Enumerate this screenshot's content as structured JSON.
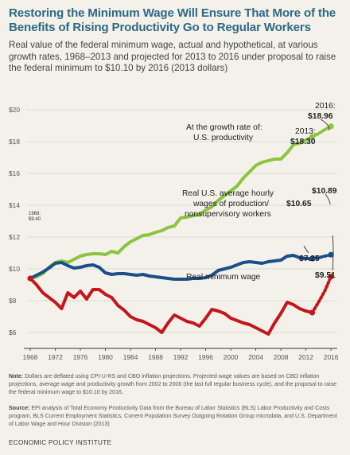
{
  "title": "Restoring the Minimum Wage Will Ensure That More of the Benefits of Rising Productivity Go to Regular Workers",
  "subtitle": "Real value of the federal minimum wage, actual and hypothetical, at various growth rates, 1968–2013 and projected for 2013 to 2016 under proposal to raise the federal minimum to $10.10 by 2016 (2013 dollars)",
  "note_label": "Note:",
  "note": "Dollars are deflated using CPI-U-RS and CBO inflation projections. Projected wage values are based on CBO inflation projections, average wage and productivity growth from 2002 to 2006 (the last full regular business cycle), and the proposal to raise the federal minimum wage to $10.10 by 2016.",
  "source_label": "Source:",
  "source": "EPI analysis of Total Economy Productivity Data from the Bureau of Labor Statistics (BLS) Labor Productivity and Costs program, BLS Current Employment Statistics, Current Population Survey Outgoing Rotation Group microdata, and U.S. Department of Labor Wage and Hour Division (2013)",
  "footer": "ECONOMIC POLICY INSTITUTE",
  "colors": {
    "productivity": "#8bc53f",
    "average_wage": "#1b4f8a",
    "minimum_wage": "#c4161c",
    "grid": "#d7d5cf",
    "title": "#2f6a84"
  },
  "chart_data": {
    "type": "line",
    "xlim": [
      1968,
      2017
    ],
    "ylim": [
      5,
      21
    ],
    "y_ticks": [
      "$20",
      "$18",
      "$16",
      "$14",
      "$12",
      "$10",
      "$8",
      "$6"
    ],
    "x_ticks": [
      "1968",
      "1972",
      "1976",
      "1980",
      "1984",
      "1988",
      "1992",
      "1996",
      "2000",
      "2004",
      "2008",
      "2012",
      "2016"
    ],
    "grid": true,
    "series": [
      {
        "key": "productivity",
        "label_lines": [
          "At the growth rate of:",
          "U.S. productivity"
        ],
        "actual": [
          [
            1968,
            9.4
          ],
          [
            1969,
            9.5
          ],
          [
            1970,
            9.7
          ],
          [
            1971,
            10.1
          ],
          [
            1972,
            10.4
          ],
          [
            1973,
            10.5
          ],
          [
            1974,
            10.4
          ],
          [
            1975,
            10.6
          ],
          [
            1976,
            10.8
          ],
          [
            1977,
            10.9
          ],
          [
            1978,
            10.95
          ],
          [
            1979,
            10.95
          ],
          [
            1980,
            10.9
          ],
          [
            1981,
            11.1
          ],
          [
            1982,
            11.0
          ],
          [
            1983,
            11.4
          ],
          [
            1984,
            11.7
          ],
          [
            1985,
            11.9
          ],
          [
            1986,
            12.1
          ],
          [
            1987,
            12.15
          ],
          [
            1988,
            12.3
          ],
          [
            1989,
            12.4
          ],
          [
            1990,
            12.6
          ],
          [
            1991,
            12.7
          ],
          [
            1992,
            13.2
          ],
          [
            1993,
            13.25
          ],
          [
            1994,
            13.35
          ],
          [
            1995,
            13.4
          ],
          [
            1996,
            13.7
          ],
          [
            1997,
            13.9
          ],
          [
            1998,
            14.3
          ],
          [
            1999,
            14.6
          ],
          [
            2000,
            14.9
          ],
          [
            2001,
            15.2
          ],
          [
            2002,
            15.7
          ],
          [
            2003,
            16.1
          ],
          [
            2004,
            16.5
          ],
          [
            2005,
            16.7
          ],
          [
            2006,
            16.8
          ],
          [
            2007,
            16.9
          ],
          [
            2008,
            16.9
          ],
          [
            2009,
            17.3
          ],
          [
            2010,
            17.8
          ],
          [
            2011,
            17.9
          ],
          [
            2012,
            18.1
          ],
          [
            2013,
            18.3
          ]
        ],
        "projected": [
          [
            2013,
            18.3
          ],
          [
            2014,
            18.5
          ],
          [
            2015,
            18.75
          ],
          [
            2016,
            18.96
          ]
        ],
        "callouts": [
          {
            "year_label": "2013:",
            "value": "$18.30"
          },
          {
            "year_label": "2016:",
            "value": "$18.96"
          }
        ]
      },
      {
        "key": "average_wage",
        "label_lines": [
          "Real U.S. average hourly",
          "wages of production/",
          "nonsupervisory workers"
        ],
        "actual": [
          [
            1968,
            9.4
          ],
          [
            1969,
            9.6
          ],
          [
            1970,
            9.8
          ],
          [
            1971,
            10.05
          ],
          [
            1972,
            10.35
          ],
          [
            1973,
            10.4
          ],
          [
            1974,
            10.2
          ],
          [
            1975,
            10.05
          ],
          [
            1976,
            10.1
          ],
          [
            1977,
            10.2
          ],
          [
            1978,
            10.25
          ],
          [
            1979,
            10.1
          ],
          [
            1980,
            9.75
          ],
          [
            1981,
            9.65
          ],
          [
            1982,
            9.7
          ],
          [
            1983,
            9.7
          ],
          [
            1984,
            9.65
          ],
          [
            1985,
            9.6
          ],
          [
            1986,
            9.65
          ],
          [
            1987,
            9.55
          ],
          [
            1988,
            9.5
          ],
          [
            1989,
            9.45
          ],
          [
            1990,
            9.4
          ],
          [
            1991,
            9.35
          ],
          [
            1992,
            9.35
          ],
          [
            1993,
            9.35
          ],
          [
            1994,
            9.4
          ],
          [
            1995,
            9.4
          ],
          [
            1996,
            9.45
          ],
          [
            1997,
            9.6
          ],
          [
            1998,
            9.9
          ],
          [
            1999,
            10.0
          ],
          [
            2000,
            10.1
          ],
          [
            2001,
            10.25
          ],
          [
            2002,
            10.4
          ],
          [
            2003,
            10.45
          ],
          [
            2004,
            10.4
          ],
          [
            2005,
            10.35
          ],
          [
            2006,
            10.45
          ],
          [
            2007,
            10.5
          ],
          [
            2008,
            10.55
          ],
          [
            2009,
            10.8
          ],
          [
            2010,
            10.85
          ],
          [
            2011,
            10.7
          ],
          [
            2012,
            10.65
          ],
          [
            2013,
            10.65
          ]
        ],
        "projected": [
          [
            2013,
            10.65
          ],
          [
            2014,
            10.7
          ],
          [
            2015,
            10.8
          ],
          [
            2016,
            10.89
          ]
        ],
        "callouts": [
          {
            "value": "$10.65"
          },
          {
            "value": "$10.89"
          }
        ]
      },
      {
        "key": "minimum_wage",
        "label_lines": [
          "Real minimum wage"
        ],
        "actual": [
          [
            1968,
            9.4
          ],
          [
            1969,
            9.0
          ],
          [
            1970,
            8.5
          ],
          [
            1971,
            8.2
          ],
          [
            1972,
            7.9
          ],
          [
            1973,
            7.5
          ],
          [
            1974,
            8.5
          ],
          [
            1975,
            8.2
          ],
          [
            1976,
            8.6
          ],
          [
            1977,
            8.1
          ],
          [
            1978,
            8.7
          ],
          [
            1979,
            8.7
          ],
          [
            1980,
            8.4
          ],
          [
            1981,
            8.2
          ],
          [
            1982,
            7.7
          ],
          [
            1983,
            7.4
          ],
          [
            1984,
            7.0
          ],
          [
            1985,
            6.8
          ],
          [
            1986,
            6.7
          ],
          [
            1987,
            6.5
          ],
          [
            1988,
            6.3
          ],
          [
            1989,
            6.0
          ],
          [
            1990,
            6.6
          ],
          [
            1991,
            7.1
          ],
          [
            1992,
            6.9
          ],
          [
            1993,
            6.7
          ],
          [
            1994,
            6.6
          ],
          [
            1995,
            6.4
          ],
          [
            1996,
            6.9
          ],
          [
            1997,
            7.45
          ],
          [
            1998,
            7.35
          ],
          [
            1999,
            7.2
          ],
          [
            2000,
            6.9
          ],
          [
            2001,
            6.75
          ],
          [
            2002,
            6.6
          ],
          [
            2003,
            6.5
          ],
          [
            2004,
            6.3
          ],
          [
            2005,
            6.1
          ],
          [
            2006,
            5.9
          ],
          [
            2007,
            6.6
          ],
          [
            2008,
            7.2
          ],
          [
            2009,
            7.9
          ],
          [
            2010,
            7.75
          ],
          [
            2011,
            7.5
          ],
          [
            2012,
            7.35
          ],
          [
            2013,
            7.25
          ]
        ],
        "projected": [
          [
            2013,
            7.25
          ],
          [
            2014,
            7.9
          ],
          [
            2015,
            8.6
          ],
          [
            2016,
            9.51
          ]
        ],
        "callouts": [
          {
            "value": "$7.25"
          },
          {
            "value": "$9.51"
          }
        ]
      }
    ],
    "start_annotation": {
      "year_label": "1968:",
      "value": "$9.40"
    }
  }
}
